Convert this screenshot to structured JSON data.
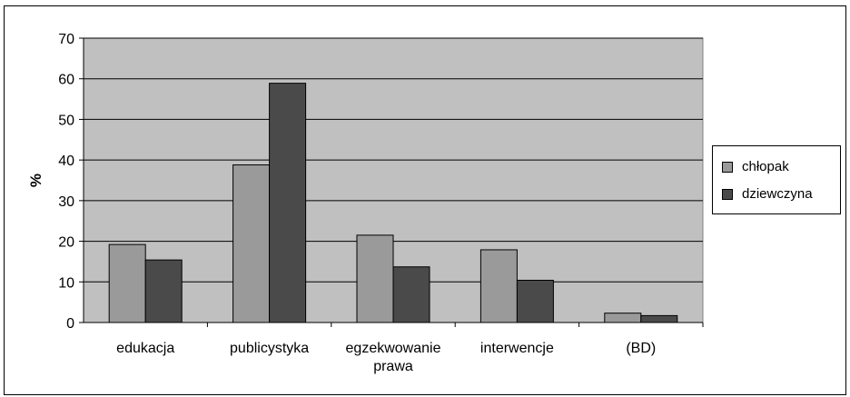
{
  "chart_data": {
    "type": "bar",
    "categories": [
      "edukacja",
      "publicystyka",
      "egzekwowanie\nprawa",
      "interwencje",
      "(BD)"
    ],
    "series": [
      {
        "name": "chłopak",
        "values": [
          19.2,
          38.8,
          21.5,
          17.9,
          2.3
        ],
        "color": "#9a9a9a"
      },
      {
        "name": "dziewczyna",
        "values": [
          15.4,
          58.9,
          13.7,
          10.4,
          1.7
        ],
        "color": "#4a4a4a"
      }
    ],
    "ylabel": "%",
    "xlabel": "",
    "ylim": [
      0,
      70
    ],
    "yticks": [
      0,
      10,
      20,
      30,
      40,
      50,
      60,
      70
    ],
    "grid": true,
    "plot_background": "#c0c0c0",
    "legend_position": "right"
  }
}
